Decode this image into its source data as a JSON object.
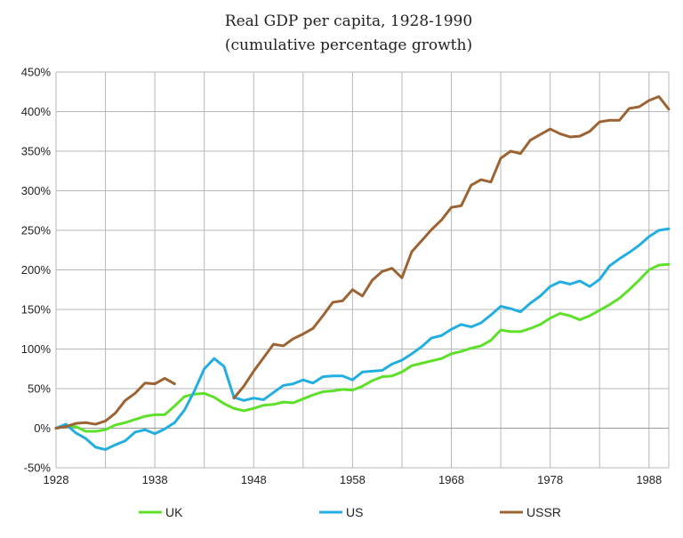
{
  "chart_data": {
    "type": "line",
    "title": "Real GDP per capita, 1928-1990",
    "subtitle": "(cumulative percentage growth)",
    "xlabel": "",
    "ylabel": "",
    "xlim": [
      1928,
      1990
    ],
    "ylim": [
      -50,
      450
    ],
    "x_ticks": [
      1928,
      1938,
      1948,
      1958,
      1968,
      1978,
      1988
    ],
    "y_ticks": [
      -50,
      0,
      50,
      100,
      150,
      200,
      250,
      300,
      350,
      400,
      450
    ],
    "y_tick_labels": [
      "-50%",
      "0%",
      "50%",
      "100%",
      "150%",
      "200%",
      "250%",
      "300%",
      "350%",
      "400%",
      "450%"
    ],
    "grid": true,
    "legend_position": "bottom",
    "series": [
      {
        "name": "UK",
        "color": "#5ee02b",
        "points": [
          [
            1928,
            0
          ],
          [
            1929,
            3
          ],
          [
            1930,
            2
          ],
          [
            1931,
            -4
          ],
          [
            1932,
            -4
          ],
          [
            1933,
            -2
          ],
          [
            1934,
            4
          ],
          [
            1935,
            7
          ],
          [
            1936,
            11
          ],
          [
            1937,
            15
          ],
          [
            1938,
            17
          ],
          [
            1939,
            17
          ],
          [
            1940,
            28
          ],
          [
            1941,
            40
          ],
          [
            1942,
            43
          ],
          [
            1943,
            44
          ],
          [
            1944,
            39
          ],
          [
            1945,
            31
          ],
          [
            1946,
            25
          ],
          [
            1947,
            22
          ],
          [
            1948,
            25
          ],
          [
            1949,
            29
          ],
          [
            1950,
            30
          ],
          [
            1951,
            33
          ],
          [
            1952,
            32
          ],
          [
            1953,
            37
          ],
          [
            1954,
            42
          ],
          [
            1955,
            46
          ],
          [
            1956,
            47
          ],
          [
            1957,
            49
          ],
          [
            1958,
            48
          ],
          [
            1959,
            53
          ],
          [
            1960,
            60
          ],
          [
            1961,
            65
          ],
          [
            1962,
            66
          ],
          [
            1963,
            71
          ],
          [
            1964,
            79
          ],
          [
            1965,
            82
          ],
          [
            1966,
            85
          ],
          [
            1967,
            88
          ],
          [
            1968,
            94
          ],
          [
            1969,
            97
          ],
          [
            1970,
            101
          ],
          [
            1971,
            104
          ],
          [
            1972,
            111
          ],
          [
            1973,
            124
          ],
          [
            1974,
            122
          ],
          [
            1975,
            122
          ],
          [
            1976,
            126
          ],
          [
            1977,
            131
          ],
          [
            1978,
            139
          ],
          [
            1979,
            145
          ],
          [
            1980,
            142
          ],
          [
            1981,
            137
          ],
          [
            1982,
            142
          ],
          [
            1983,
            149
          ],
          [
            1984,
            156
          ],
          [
            1985,
            164
          ],
          [
            1986,
            175
          ],
          [
            1987,
            187
          ],
          [
            1988,
            200
          ],
          [
            1989,
            206
          ],
          [
            1990,
            207
          ]
        ]
      },
      {
        "name": "US",
        "color": "#23aee0",
        "points": [
          [
            1928,
            0
          ],
          [
            1929,
            5
          ],
          [
            1930,
            -6
          ],
          [
            1931,
            -13
          ],
          [
            1932,
            -24
          ],
          [
            1933,
            -27
          ],
          [
            1934,
            -21
          ],
          [
            1935,
            -16
          ],
          [
            1936,
            -5
          ],
          [
            1937,
            -2
          ],
          [
            1938,
            -7
          ],
          [
            1939,
            -1
          ],
          [
            1940,
            7
          ],
          [
            1941,
            23
          ],
          [
            1942,
            47
          ],
          [
            1943,
            75
          ],
          [
            1944,
            88
          ],
          [
            1945,
            78
          ],
          [
            1946,
            39
          ],
          [
            1947,
            35
          ],
          [
            1948,
            38
          ],
          [
            1949,
            36
          ],
          [
            1950,
            45
          ],
          [
            1951,
            54
          ],
          [
            1952,
            56
          ],
          [
            1953,
            61
          ],
          [
            1954,
            57
          ],
          [
            1955,
            65
          ],
          [
            1956,
            66
          ],
          [
            1957,
            66
          ],
          [
            1958,
            61
          ],
          [
            1959,
            71
          ],
          [
            1960,
            72
          ],
          [
            1961,
            73
          ],
          [
            1962,
            81
          ],
          [
            1963,
            86
          ],
          [
            1964,
            94
          ],
          [
            1965,
            103
          ],
          [
            1966,
            114
          ],
          [
            1967,
            117
          ],
          [
            1968,
            125
          ],
          [
            1969,
            131
          ],
          [
            1970,
            128
          ],
          [
            1971,
            133
          ],
          [
            1972,
            143
          ],
          [
            1973,
            154
          ],
          [
            1974,
            151
          ],
          [
            1975,
            147
          ],
          [
            1976,
            158
          ],
          [
            1977,
            167
          ],
          [
            1978,
            179
          ],
          [
            1979,
            185
          ],
          [
            1980,
            182
          ],
          [
            1981,
            186
          ],
          [
            1982,
            179
          ],
          [
            1983,
            188
          ],
          [
            1984,
            205
          ],
          [
            1985,
            214
          ],
          [
            1986,
            222
          ],
          [
            1987,
            231
          ],
          [
            1988,
            242
          ],
          [
            1989,
            250
          ],
          [
            1990,
            252
          ]
        ]
      },
      {
        "name": "USSR",
        "color": "#9b6432",
        "points": [
          [
            1928,
            0
          ],
          [
            1929,
            2
          ],
          [
            1930,
            6
          ],
          [
            1931,
            7
          ],
          [
            1932,
            5
          ],
          [
            1933,
            9
          ],
          [
            1934,
            19
          ],
          [
            1935,
            35
          ],
          [
            1936,
            44
          ],
          [
            1937,
            57
          ],
          [
            1938,
            56
          ],
          [
            1939,
            63
          ],
          [
            1940,
            56
          ],
          [
            null,
            null
          ],
          [
            1946,
            38
          ],
          [
            1947,
            53
          ],
          [
            1948,
            72
          ],
          [
            1949,
            89
          ],
          [
            1950,
            106
          ],
          [
            1951,
            104
          ],
          [
            1952,
            113
          ],
          [
            1953,
            119
          ],
          [
            1954,
            126
          ],
          [
            1955,
            142
          ],
          [
            1956,
            159
          ],
          [
            1957,
            161
          ],
          [
            1958,
            175
          ],
          [
            1959,
            167
          ],
          [
            1960,
            187
          ],
          [
            1961,
            198
          ],
          [
            1962,
            202
          ],
          [
            1963,
            190
          ],
          [
            1964,
            223
          ],
          [
            1965,
            237
          ],
          [
            1966,
            251
          ],
          [
            1967,
            263
          ],
          [
            1968,
            279
          ],
          [
            1969,
            281
          ],
          [
            1970,
            307
          ],
          [
            1971,
            314
          ],
          [
            1972,
            311
          ],
          [
            1973,
            341
          ],
          [
            1974,
            350
          ],
          [
            1975,
            347
          ],
          [
            1976,
            364
          ],
          [
            1977,
            371
          ],
          [
            1978,
            378
          ],
          [
            1979,
            372
          ],
          [
            1980,
            368
          ],
          [
            1981,
            369
          ],
          [
            1982,
            375
          ],
          [
            1983,
            387
          ],
          [
            1984,
            389
          ],
          [
            1985,
            389
          ],
          [
            1986,
            404
          ],
          [
            1987,
            406
          ],
          [
            1988,
            414
          ],
          [
            1989,
            419
          ],
          [
            1990,
            403
          ]
        ]
      }
    ]
  }
}
